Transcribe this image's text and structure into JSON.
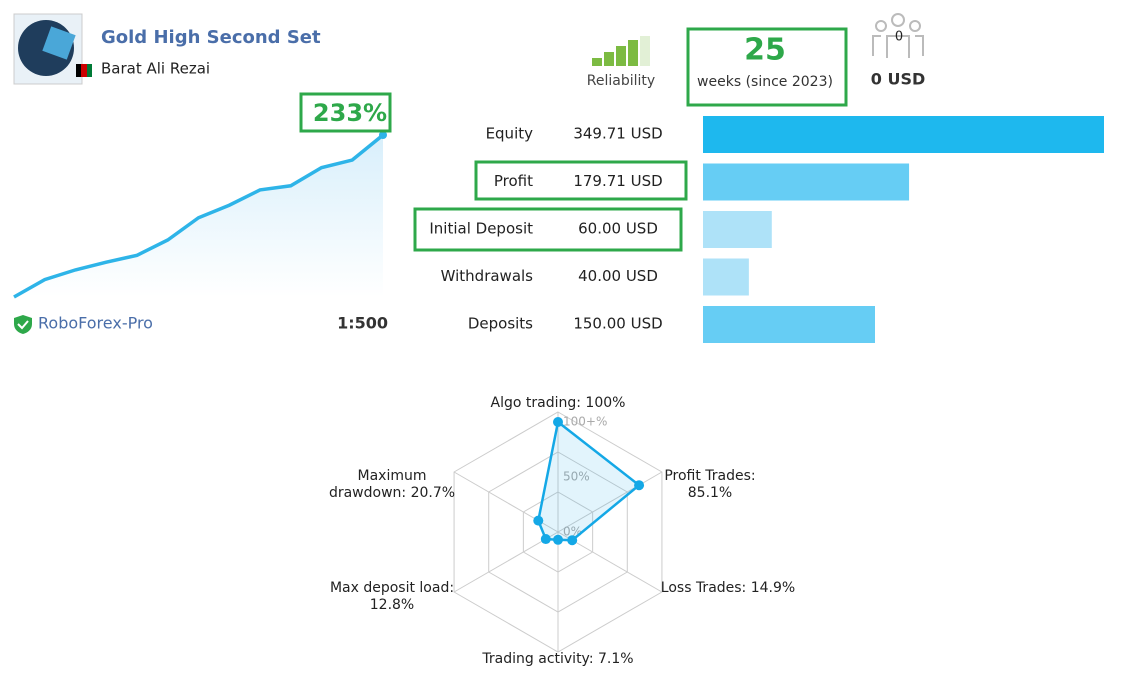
{
  "header": {
    "title": "Gold High Second Set",
    "author": "Barat Ali Rezai"
  },
  "reliability": {
    "label": "Reliability"
  },
  "weeks": {
    "value": "25",
    "label": "weeks (since 2023)"
  },
  "subscribers": {
    "count": "0",
    "amount": "0 USD"
  },
  "growth": {
    "label": "233%",
    "values": [
      0,
      25,
      39,
      50,
      60,
      82,
      114,
      132,
      154,
      160,
      186,
      197,
      233
    ],
    "color": "#2eb4e8"
  },
  "broker": {
    "name": "RoboForex-Pro",
    "leverage": "1:500"
  },
  "rows": [
    {
      "label": "Equity",
      "value": 349.71,
      "value_label": "349.71 USD",
      "color": "#1eb8ee"
    },
    {
      "label": "Profit",
      "value": 179.71,
      "value_label": "179.71 USD",
      "color": "#66cdf4"
    },
    {
      "label": "Initial Deposit",
      "value": 60.0,
      "value_label": "60.00 USD",
      "color": "#aee2f8"
    },
    {
      "label": "Withdrawals",
      "value": 40.0,
      "value_label": "40.00 USD",
      "color": "#aee2f8"
    },
    {
      "label": "Deposits",
      "value": 150.0,
      "value_label": "150.00 USD",
      "color": "#66cdf4"
    }
  ],
  "radar": {
    "axes": [
      {
        "label": [
          "Algo trading: 100%"
        ],
        "value": 100
      },
      {
        "label": [
          "Profit Trades:",
          "85.1%"
        ],
        "value": 85.1
      },
      {
        "label": [
          "Loss Trades: 14.9%"
        ],
        "value": 14.9
      },
      {
        "label": [
          "Trading activity: 7.1%"
        ],
        "value": 7.1
      },
      {
        "label": [
          "Max deposit load:",
          "12.8%"
        ],
        "value": 12.8
      },
      {
        "label": [
          "Maximum",
          "drawdown: 20.7%"
        ],
        "value": 20.7
      }
    ],
    "ticks": [
      {
        "value": 0,
        "label": "0%"
      },
      {
        "value": 50,
        "label": "50%"
      },
      {
        "value": 100,
        "label": "100+%"
      }
    ],
    "color": "#14a8e6"
  }
}
